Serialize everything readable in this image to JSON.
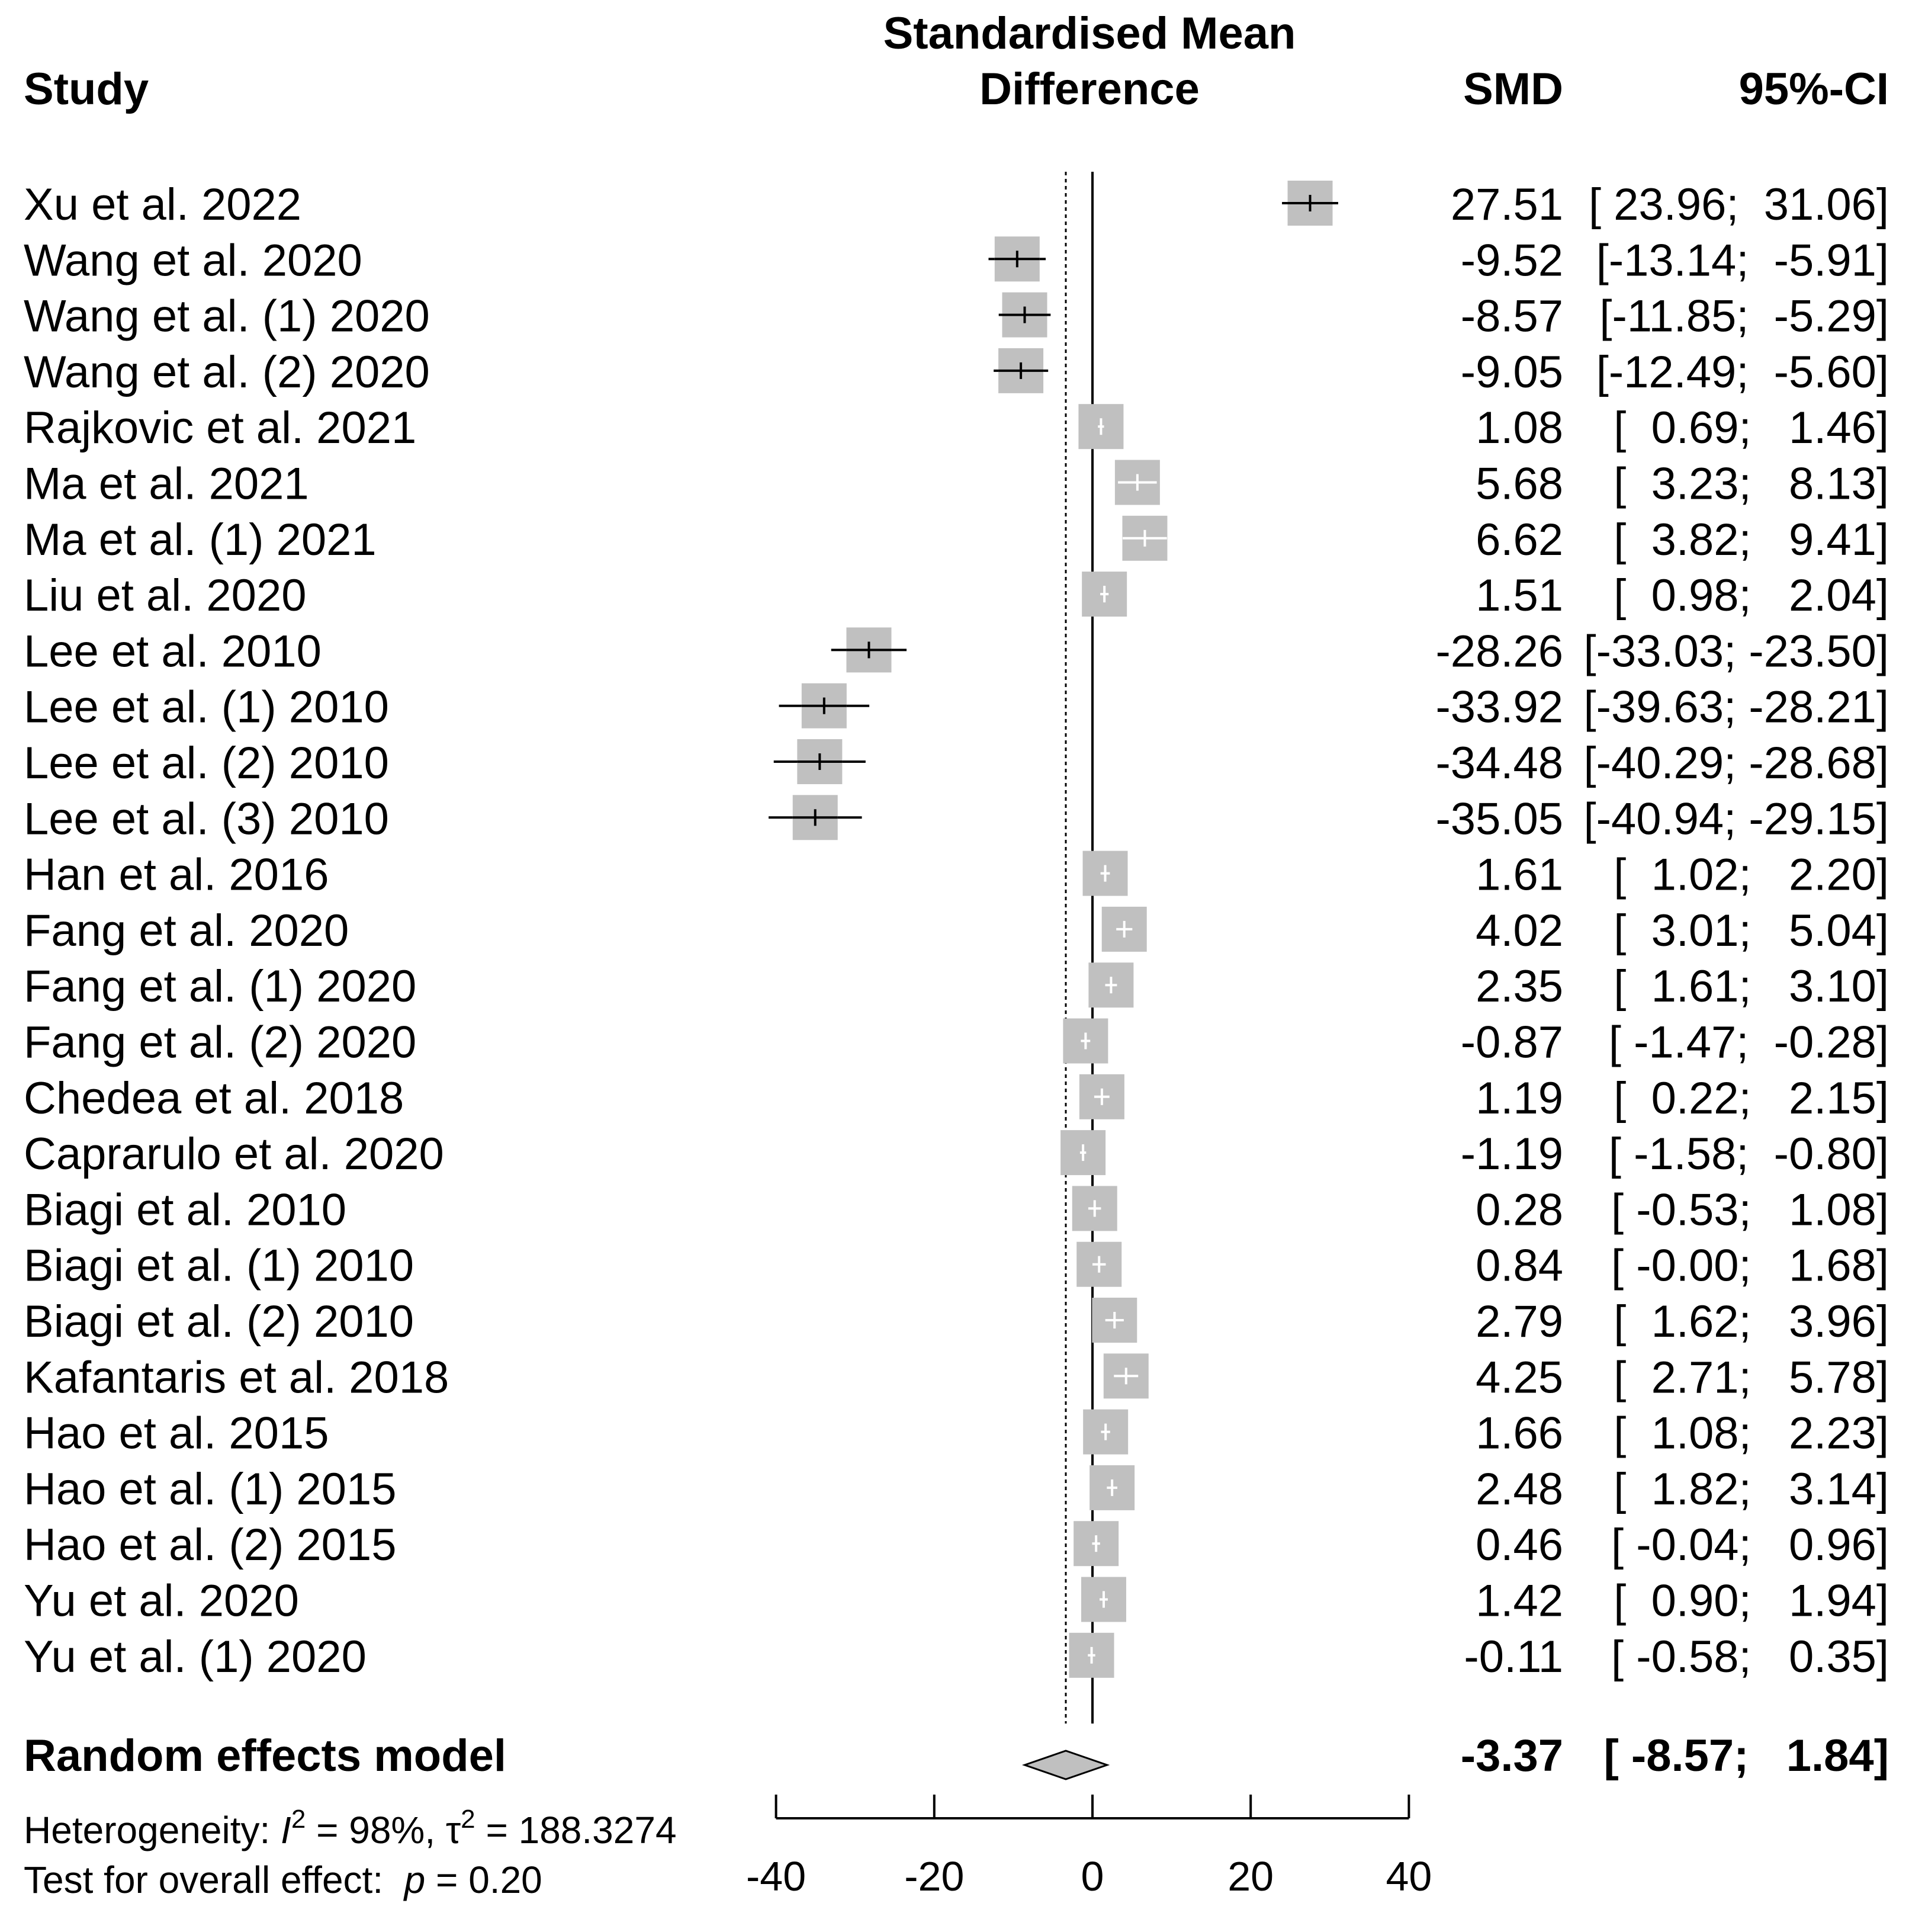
{
  "chart_data": {
    "type": "forest",
    "title": "Standardised Mean Difference",
    "columns": {
      "study": "Study",
      "smd": "SMD",
      "ci": "95%-CI"
    },
    "studies": [
      {
        "study": "Xu et al. 2022",
        "smd": 27.51,
        "lower": 23.96,
        "upper": 31.06,
        "smd_text": "27.51",
        "ci_text": "[ 23.96;  31.06]"
      },
      {
        "study": "Wang et al. 2020",
        "smd": -9.52,
        "lower": -13.14,
        "upper": -5.91,
        "smd_text": "-9.52",
        "ci_text": "[-13.14;  -5.91]"
      },
      {
        "study": "Wang et al. (1) 2020",
        "smd": -8.57,
        "lower": -11.85,
        "upper": -5.29,
        "smd_text": "-8.57",
        "ci_text": "[-11.85;  -5.29]"
      },
      {
        "study": "Wang et al. (2) 2020",
        "smd": -9.05,
        "lower": -12.49,
        "upper": -5.6,
        "smd_text": "-9.05",
        "ci_text": "[-12.49;  -5.60]"
      },
      {
        "study": "Rajkovic et al. 2021",
        "smd": 1.08,
        "lower": 0.69,
        "upper": 1.46,
        "smd_text": "1.08",
        "ci_text": "[  0.69;   1.46]"
      },
      {
        "study": "Ma et al. 2021",
        "smd": 5.68,
        "lower": 3.23,
        "upper": 8.13,
        "smd_text": "5.68",
        "ci_text": "[  3.23;   8.13]"
      },
      {
        "study": "Ma et al. (1) 2021",
        "smd": 6.62,
        "lower": 3.82,
        "upper": 9.41,
        "smd_text": "6.62",
        "ci_text": "[  3.82;   9.41]"
      },
      {
        "study": "Liu et al. 2020",
        "smd": 1.51,
        "lower": 0.98,
        "upper": 2.04,
        "smd_text": "1.51",
        "ci_text": "[  0.98;   2.04]"
      },
      {
        "study": "Lee et al. 2010",
        "smd": -28.26,
        "lower": -33.03,
        "upper": -23.5,
        "smd_text": "-28.26",
        "ci_text": "[-33.03; -23.50]"
      },
      {
        "study": "Lee et al. (1) 2010",
        "smd": -33.92,
        "lower": -39.63,
        "upper": -28.21,
        "smd_text": "-33.92",
        "ci_text": "[-39.63; -28.21]"
      },
      {
        "study": "Lee et al. (2) 2010",
        "smd": -34.48,
        "lower": -40.29,
        "upper": -28.68,
        "smd_text": "-34.48",
        "ci_text": "[-40.29; -28.68]"
      },
      {
        "study": "Lee et al. (3) 2010",
        "smd": -35.05,
        "lower": -40.94,
        "upper": -29.15,
        "smd_text": "-35.05",
        "ci_text": "[-40.94; -29.15]"
      },
      {
        "study": "Han et al. 2016",
        "smd": 1.61,
        "lower": 1.02,
        "upper": 2.2,
        "smd_text": "1.61",
        "ci_text": "[  1.02;   2.20]"
      },
      {
        "study": "Fang et al. 2020",
        "smd": 4.02,
        "lower": 3.01,
        "upper": 5.04,
        "smd_text": "4.02",
        "ci_text": "[  3.01;   5.04]"
      },
      {
        "study": "Fang et al. (1) 2020",
        "smd": 2.35,
        "lower": 1.61,
        "upper": 3.1,
        "smd_text": "2.35",
        "ci_text": "[  1.61;   3.10]"
      },
      {
        "study": "Fang et al. (2) 2020",
        "smd": -0.87,
        "lower": -1.47,
        "upper": -0.28,
        "smd_text": "-0.87",
        "ci_text": "[ -1.47;  -0.28]"
      },
      {
        "study": "Chedea et al. 2018",
        "smd": 1.19,
        "lower": 0.22,
        "upper": 2.15,
        "smd_text": "1.19",
        "ci_text": "[  0.22;   2.15]"
      },
      {
        "study": "Caprarulo et al. 2020",
        "smd": -1.19,
        "lower": -1.58,
        "upper": -0.8,
        "smd_text": "-1.19",
        "ci_text": "[ -1.58;  -0.80]"
      },
      {
        "study": "Biagi et al. 2010",
        "smd": 0.28,
        "lower": -0.53,
        "upper": 1.08,
        "smd_text": "0.28",
        "ci_text": "[ -0.53;   1.08]"
      },
      {
        "study": "Biagi et al. (1) 2010",
        "smd": 0.84,
        "lower": -0.0,
        "upper": 1.68,
        "smd_text": "0.84",
        "ci_text": "[ -0.00;   1.68]"
      },
      {
        "study": "Biagi et al. (2) 2010",
        "smd": 2.79,
        "lower": 1.62,
        "upper": 3.96,
        "smd_text": "2.79",
        "ci_text": "[  1.62;   3.96]"
      },
      {
        "study": "Kafantaris et al. 2018",
        "smd": 4.25,
        "lower": 2.71,
        "upper": 5.78,
        "smd_text": "4.25",
        "ci_text": "[  2.71;   5.78]"
      },
      {
        "study": "Hao et al. 2015",
        "smd": 1.66,
        "lower": 1.08,
        "upper": 2.23,
        "smd_text": "1.66",
        "ci_text": "[  1.08;   2.23]"
      },
      {
        "study": "Hao et al. (1) 2015",
        "smd": 2.48,
        "lower": 1.82,
        "upper": 3.14,
        "smd_text": "2.48",
        "ci_text": "[  1.82;   3.14]"
      },
      {
        "study": "Hao et al. (2) 2015",
        "smd": 0.46,
        "lower": -0.04,
        "upper": 0.96,
        "smd_text": "0.46",
        "ci_text": "[ -0.04;   0.96]"
      },
      {
        "study": "Yu et al. 2020",
        "smd": 1.42,
        "lower": 0.9,
        "upper": 1.94,
        "smd_text": "1.42",
        "ci_text": "[  0.90;   1.94]"
      },
      {
        "study": "Yu et al. (1) 2020",
        "smd": -0.11,
        "lower": -0.58,
        "upper": 0.35,
        "smd_text": "-0.11",
        "ci_text": "[ -0.58;   0.35]"
      }
    ],
    "pooled": {
      "label": "Random effects model",
      "smd": -3.37,
      "lower": -8.57,
      "upper": 1.84,
      "smd_text": "-3.37",
      "ci_text": "[ -8.57;   1.84]"
    },
    "heterogeneity": {
      "label": "Heterogeneity: ",
      "i2": "98%",
      "tau2": "188.3274"
    },
    "overall_test": {
      "label": "Test for overall effect: ",
      "p": "0.20"
    },
    "x_axis": {
      "min": -40,
      "max": 40,
      "ticks": [
        -40,
        -20,
        0,
        20,
        40
      ],
      "null_value": 0
    },
    "colors": {
      "box": "#c0c0c0",
      "line": "#000000",
      "ci_inside": "#ffffff",
      "diamond": "#c0c0c0"
    }
  }
}
